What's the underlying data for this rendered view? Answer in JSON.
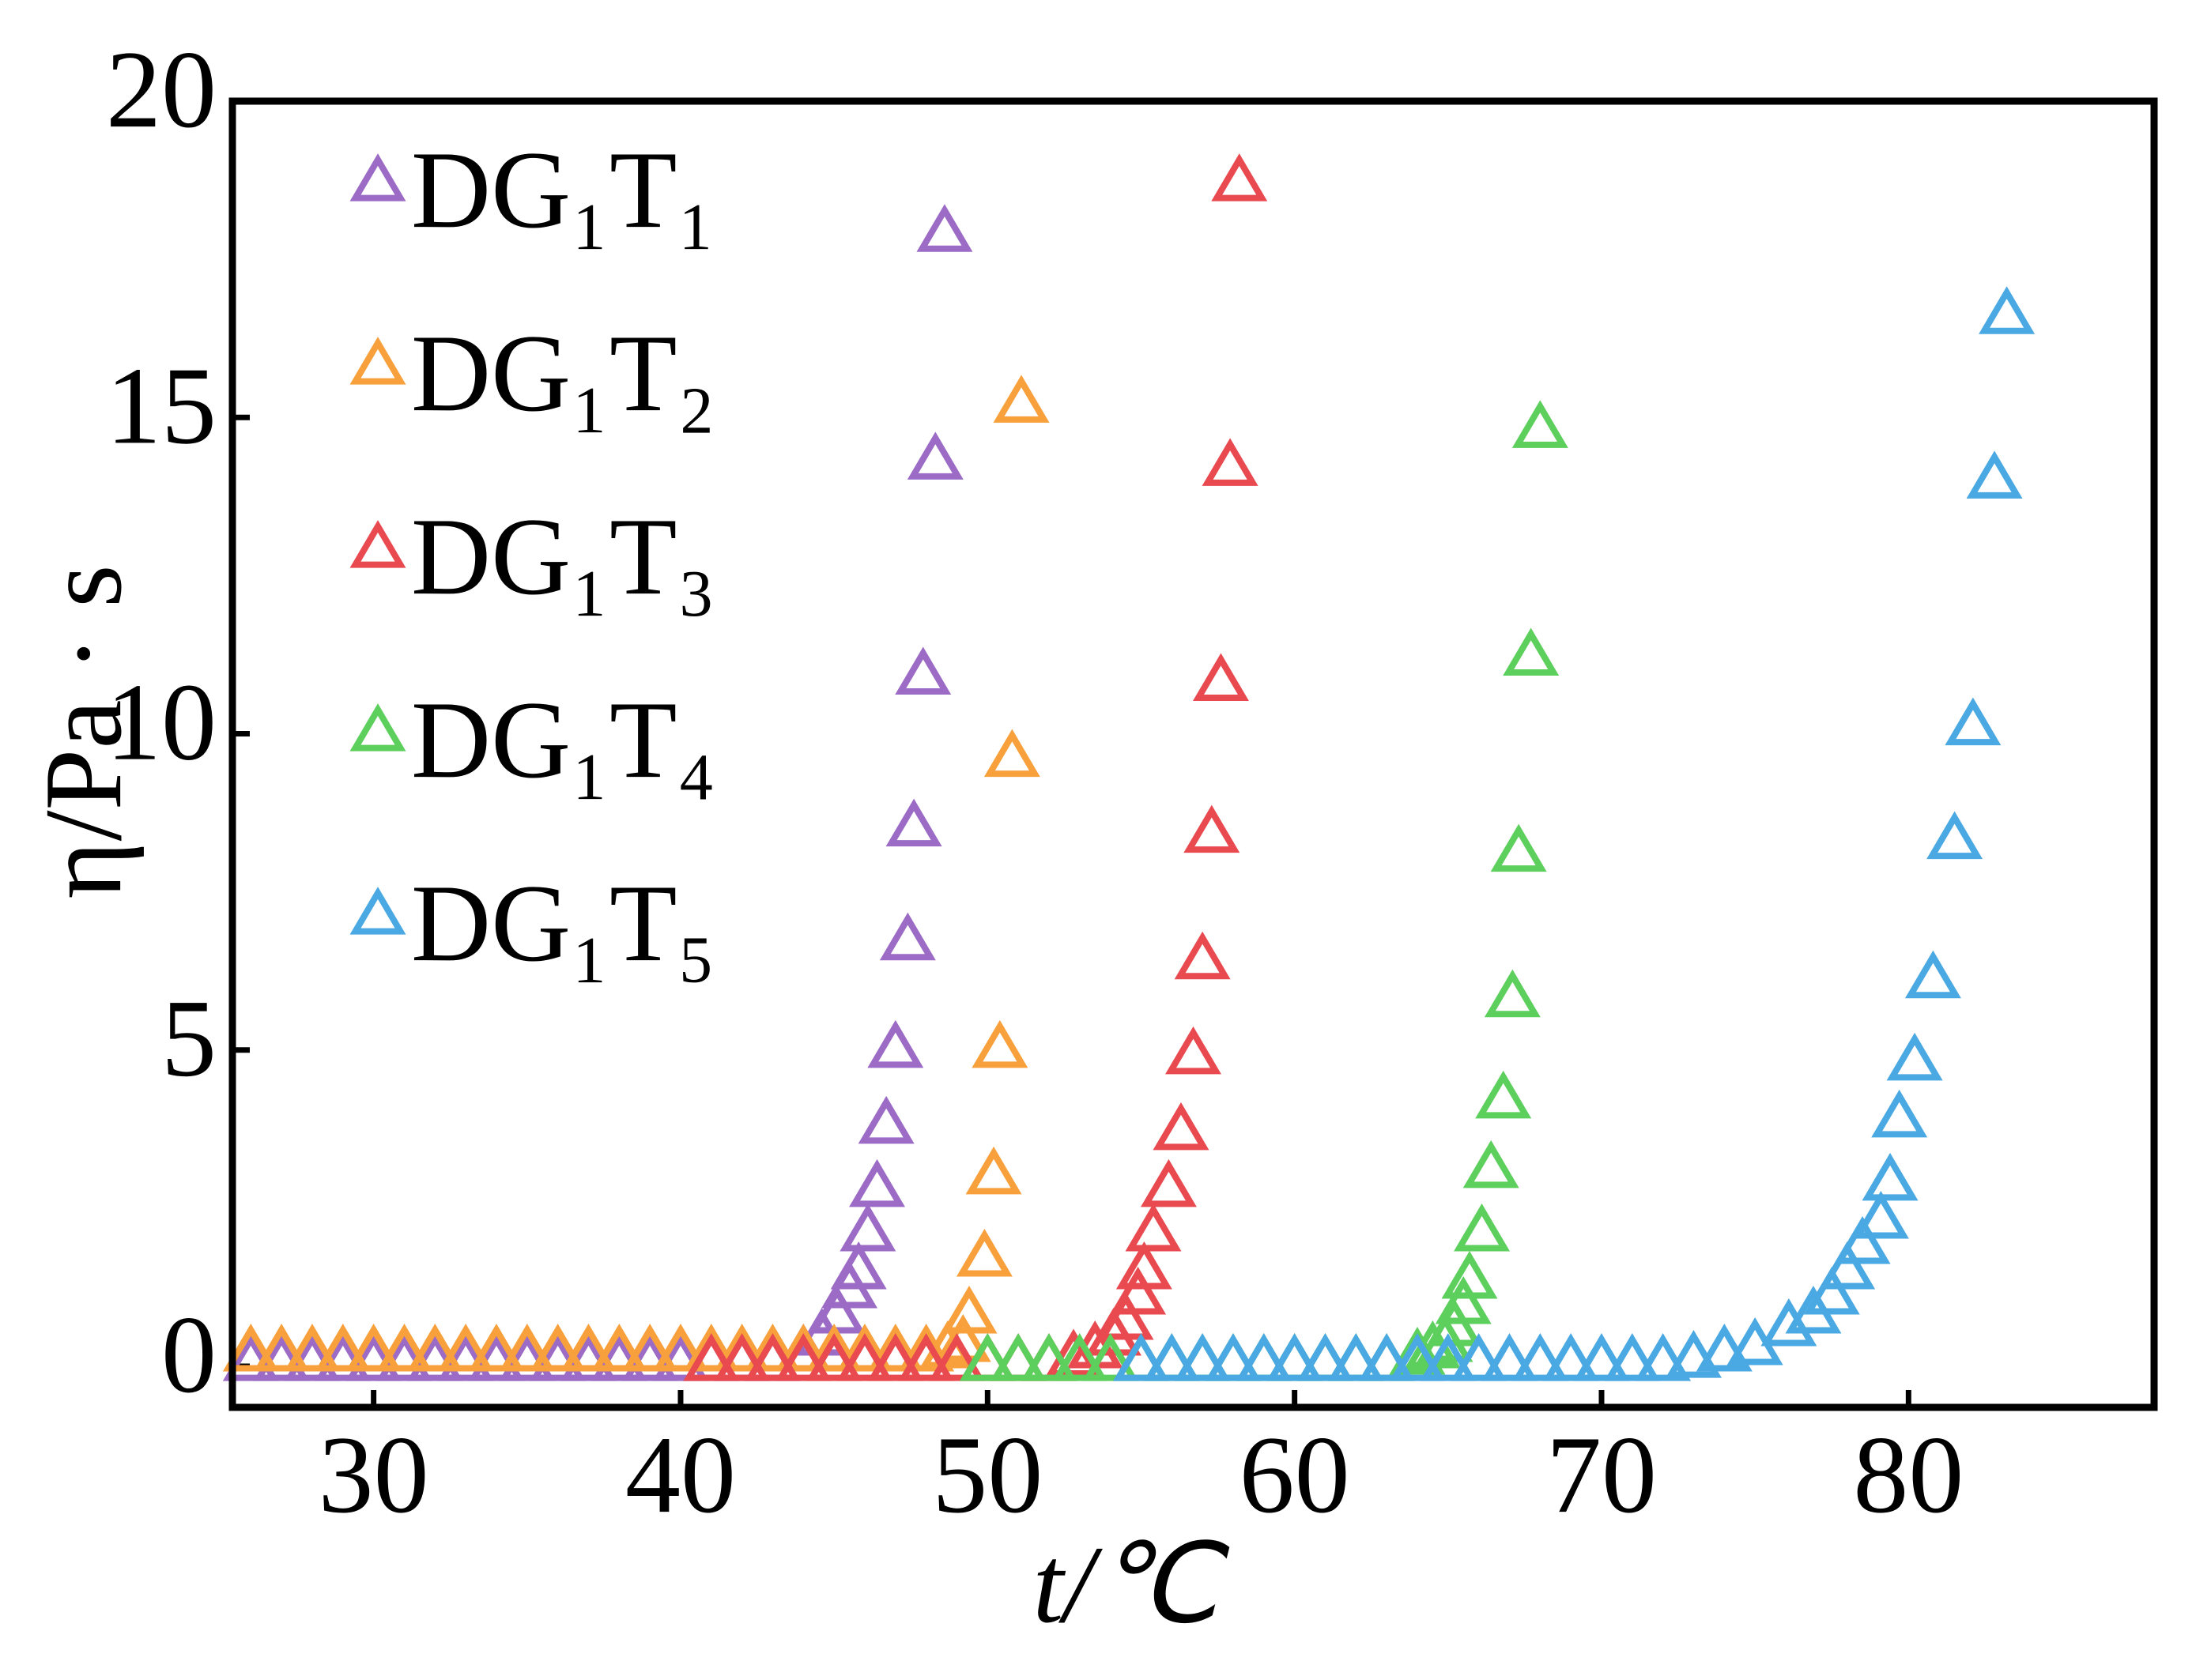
{
  "chart_data": {
    "type": "scatter",
    "xlabel": "t/℃",
    "ylabel": "η/Pa · s",
    "xlim": [
      25.4,
      88
    ],
    "ylim": [
      -0.65,
      20
    ],
    "xticks": [
      30,
      40,
      50,
      60,
      70,
      80
    ],
    "yticks": [
      0,
      5,
      10,
      15,
      20
    ],
    "legend": "upper left",
    "series": [
      {
        "name": "DG₁T₁",
        "color": "#9b6bc6",
        "x": [
          26,
          27,
          28,
          29,
          30,
          31,
          32,
          33,
          34,
          35,
          36,
          37,
          38,
          39,
          40,
          41,
          42,
          43,
          44,
          44.6,
          45.1,
          45.5,
          45.8,
          46.1,
          46.4,
          46.7,
          47.0,
          47.4,
          47.6,
          47.9,
          48.3,
          48.6
        ],
        "values": [
          0.05,
          0.05,
          0.05,
          0.05,
          0.05,
          0.05,
          0.05,
          0.05,
          0.05,
          0.05,
          0.05,
          0.05,
          0.05,
          0.05,
          0.05,
          0.05,
          0.05,
          0.05,
          0.2,
          0.45,
          0.8,
          1.2,
          1.5,
          2.1,
          2.8,
          3.8,
          5.0,
          6.7,
          8.5,
          10.9,
          14.3,
          17.9
        ]
      },
      {
        "name": "DG₁T₂",
        "color": "#f7a03c",
        "x": [
          26,
          27,
          28,
          29,
          30,
          31,
          32,
          33,
          34,
          35,
          36,
          37,
          38,
          39,
          40,
          41,
          42,
          43,
          44,
          45,
          46,
          47,
          48,
          48.7,
          49.2,
          49.4,
          49.9,
          50.2,
          50.4,
          50.8,
          51.1
        ],
        "values": [
          0.2,
          0.2,
          0.2,
          0.2,
          0.2,
          0.2,
          0.2,
          0.2,
          0.2,
          0.2,
          0.2,
          0.2,
          0.2,
          0.2,
          0.2,
          0.2,
          0.2,
          0.2,
          0.2,
          0.2,
          0.2,
          0.2,
          0.2,
          0.25,
          0.35,
          0.8,
          1.7,
          3.0,
          5.0,
          9.6,
          15.2
        ]
      },
      {
        "name": "DG₁T₃",
        "color": "#e84a50",
        "x": [
          41,
          42,
          43,
          44,
          45,
          46,
          47,
          48,
          49,
          50,
          51,
          52,
          52.8,
          53.5,
          54.1,
          54.5,
          54.9,
          55.1,
          55.4,
          55.9,
          56.3,
          56.7,
          57.0,
          57.3,
          57.6,
          57.9,
          58.2
        ],
        "values": [
          0.05,
          0.05,
          0.05,
          0.05,
          0.05,
          0.05,
          0.05,
          0.05,
          0.05,
          0.05,
          0.05,
          0.05,
          0.12,
          0.25,
          0.45,
          0.7,
          1.1,
          1.5,
          2.1,
          2.8,
          3.7,
          4.9,
          6.4,
          8.4,
          10.8,
          14.2,
          18.7
        ]
      },
      {
        "name": "DG₁T₄",
        "color": "#5ccf5c",
        "x": [
          50,
          51,
          52,
          53,
          54,
          55,
          56,
          57,
          58,
          59,
          60,
          61,
          62,
          63,
          64,
          64.5,
          64.9,
          65.2,
          65.5,
          65.7,
          66.1,
          66.4,
          66.8,
          67.1,
          67.3,
          67.7,
          68.0
        ],
        "values": [
          0.05,
          0.05,
          0.05,
          0.05,
          0.05,
          0.05,
          0.05,
          0.05,
          0.05,
          0.05,
          0.05,
          0.05,
          0.05,
          0.05,
          0.15,
          0.25,
          0.35,
          0.6,
          0.95,
          1.35,
          2.1,
          3.1,
          4.2,
          5.8,
          8.1,
          11.2,
          14.8
        ]
      },
      {
        "name": "DG₁T₅",
        "color": "#4aa8e2",
        "x": [
          55,
          56,
          57,
          58,
          59,
          60,
          61,
          62,
          63,
          64,
          65,
          66,
          67,
          68,
          69,
          70,
          71,
          72,
          73,
          74,
          75,
          76.1,
          76.9,
          77.5,
          78.0,
          78.5,
          79.1,
          79.4,
          79.7,
          80.2,
          80.8,
          81.5,
          82.1,
          82.8,
          83.2
        ],
        "values": [
          0.05,
          0.05,
          0.05,
          0.05,
          0.05,
          0.05,
          0.05,
          0.05,
          0.05,
          0.05,
          0.05,
          0.05,
          0.05,
          0.05,
          0.05,
          0.05,
          0.05,
          0.05,
          0.1,
          0.2,
          0.3,
          0.6,
          0.8,
          1.1,
          1.5,
          1.9,
          2.3,
          2.9,
          3.9,
          4.8,
          6.1,
          8.3,
          10.1,
          14.0,
          16.6
        ]
      }
    ]
  }
}
